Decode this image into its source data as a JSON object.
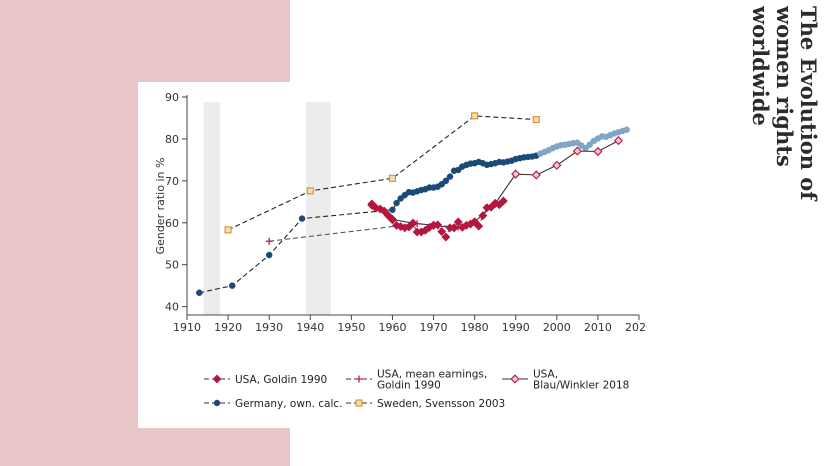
{
  "slide": {
    "title_lines": [
      "The Evolution of",
      "women rights",
      "worldwide"
    ],
    "colors": {
      "panel": "#e9c6c8",
      "background": "#ffffff"
    }
  },
  "chart_data": {
    "type": "line",
    "title": "",
    "xlabel": "",
    "ylabel": "Gender ratio in %",
    "xlim": [
      1910,
      2020
    ],
    "ylim": [
      38,
      90
    ],
    "x_ticks": [
      1910,
      1920,
      1930,
      1940,
      1950,
      1960,
      1970,
      1980,
      1990,
      2000,
      2010,
      2020
    ],
    "y_ticks": [
      40,
      50,
      60,
      70,
      80,
      90
    ],
    "shaded_periods": [
      [
        1914,
        1918
      ],
      [
        1939,
        1945
      ]
    ],
    "series": [
      {
        "name": "USA, Goldin 1990",
        "color": "#b5163f",
        "marker": "diamond",
        "dash": "dashed",
        "x": [
          1955,
          1956,
          1957,
          1958,
          1959,
          1960,
          1961,
          1962,
          1963,
          1964,
          1965,
          1966,
          1967,
          1968,
          1969,
          1970,
          1971,
          1972,
          1973,
          1974,
          1975,
          1976,
          1977,
          1978,
          1979,
          1980,
          1981,
          1982,
          1983,
          1984,
          1985,
          1986,
          1987
        ],
        "y": [
          64.5,
          63.5,
          63.3,
          62.8,
          61.7,
          60.7,
          59.4,
          59.1,
          58.8,
          59.0,
          59.9,
          57.8,
          57.8,
          58.2,
          58.9,
          59.4,
          59.5,
          57.9,
          56.6,
          58.8,
          58.8,
          60.2,
          58.9,
          59.4,
          59.7,
          60.2,
          59.2,
          61.7,
          63.6,
          63.7,
          64.6,
          64.3,
          65.2
        ]
      },
      {
        "name": "USA, mean earnings, Goldin 1990",
        "color": "#c2185b",
        "marker": "plus",
        "dash": "dashed",
        "x": [
          1930,
          1961,
          1966,
          1971,
          1976,
          1979
        ],
        "y": [
          55.6,
          59.2,
          59.8,
          59.3,
          59.0,
          59.8
        ]
      },
      {
        "name": "USA, Blau/Winkler 2018",
        "color": "#b5163f",
        "marker": "diamond-open",
        "dash": "solid",
        "x": [
          1955,
          1960,
          1965,
          1970,
          1975,
          1980,
          1985,
          1990,
          1995,
          2000,
          2005,
          2010,
          2015
        ],
        "y": [
          64.2,
          60.8,
          59.9,
          59.4,
          58.8,
          60.2,
          64.6,
          71.6,
          71.4,
          73.7,
          77.1,
          77.0,
          79.6
        ]
      },
      {
        "name": "Germany, own. calc.",
        "color": "#1c4a78",
        "marker": "circle",
        "dash": "dashed",
        "x": [
          1913,
          1921,
          1930,
          1938,
          1960,
          1961,
          1962,
          1963,
          1964,
          1965,
          1966,
          1967,
          1968,
          1969,
          1970,
          1971,
          1972,
          1973,
          1974,
          1975,
          1976,
          1977,
          1978,
          1979,
          1980,
          1981,
          1982,
          1983,
          1984,
          1985,
          1986,
          1987,
          1988,
          1989,
          1990,
          1991,
          1992,
          1993,
          1994,
          1995
        ],
        "y": [
          43.3,
          45.0,
          52.3,
          61.0,
          63.1,
          64.7,
          65.8,
          66.6,
          67.3,
          67.2,
          67.5,
          67.8,
          68.0,
          68.4,
          68.4,
          68.6,
          69.2,
          70.0,
          71.0,
          72.4,
          72.6,
          73.4,
          73.8,
          74.1,
          74.2,
          74.5,
          74.2,
          73.8,
          74.0,
          74.2,
          74.5,
          74.4,
          74.6,
          74.8,
          75.2,
          75.4,
          75.6,
          75.7,
          75.8,
          76.0
        ]
      },
      {
        "name": "Germany, own. calc. (recent)",
        "color": "#7fa6c6",
        "marker": "circle",
        "dash": "solid",
        "x": [
          1996,
          1997,
          1998,
          1999,
          2000,
          2001,
          2002,
          2003,
          2004,
          2005,
          2006,
          2007,
          2008,
          2009,
          2010,
          2011,
          2012,
          2013,
          2014,
          2015,
          2016,
          2017
        ],
        "y": [
          76.5,
          76.9,
          77.3,
          77.8,
          78.2,
          78.5,
          78.6,
          78.8,
          79.0,
          79.1,
          78.4,
          77.8,
          78.6,
          79.5,
          80.1,
          80.6,
          80.5,
          80.9,
          81.3,
          81.6,
          81.9,
          82.2
        ]
      },
      {
        "name": "Sweden, Svensson 2003",
        "color": "#d7902a",
        "marker": "square-open",
        "dash": "dashed",
        "x": [
          1920,
          1940,
          1960,
          1980,
          1995
        ],
        "y": [
          58.3,
          67.6,
          70.6,
          85.5,
          84.6
        ]
      }
    ],
    "legend": [
      {
        "label_lines": [
          "USA, Goldin 1990"
        ],
        "series": 0
      },
      {
        "label_lines": [
          "USA, mean earnings,",
          "Goldin 1990"
        ],
        "series": 1
      },
      {
        "label_lines": [
          "USA,",
          "Blau/Winkler 2018"
        ],
        "series": 2
      },
      {
        "label_lines": [
          "Germany, own. calc."
        ],
        "series": 3
      },
      {
        "label_lines": [
          "Sweden, Svensson 2003"
        ],
        "series": 5
      }
    ],
    "legend_position": "bottom"
  }
}
